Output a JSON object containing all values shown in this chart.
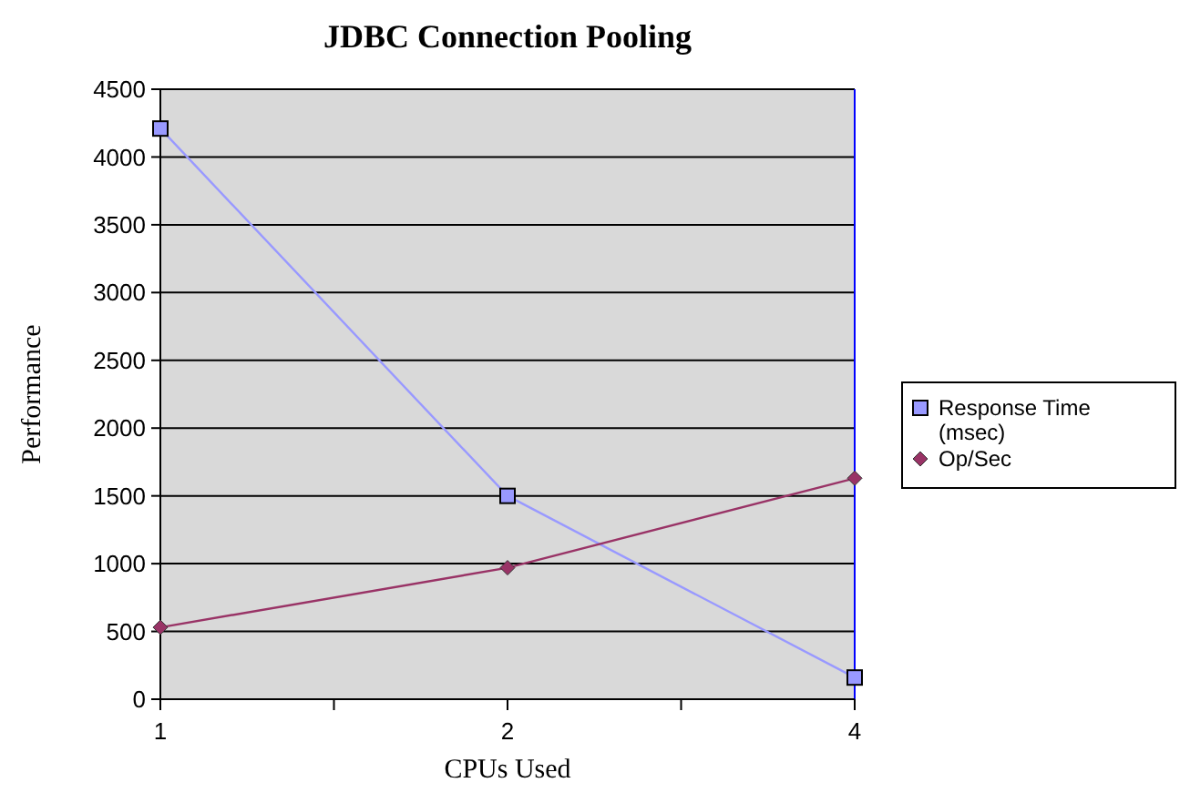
{
  "chart_data": {
    "type": "line",
    "title": "JDBC Connection Pooling",
    "xlabel": "CPUs Used",
    "ylabel": "Performance",
    "categories": [
      "1",
      "2",
      "4"
    ],
    "series": [
      {
        "name": "Response Time (msec)",
        "color": "#9999ff",
        "values": [
          4210,
          1500,
          160
        ],
        "marker": "square"
      },
      {
        "name": "Op/Sec",
        "color": "#993366",
        "values": [
          530,
          970,
          1630
        ],
        "marker": "diamond"
      }
    ],
    "ylim": [
      0,
      4500
    ],
    "yticks": [
      0,
      500,
      1000,
      1500,
      2000,
      2500,
      3000,
      3500,
      4000,
      4500
    ],
    "grid": "y",
    "legend": "right"
  }
}
